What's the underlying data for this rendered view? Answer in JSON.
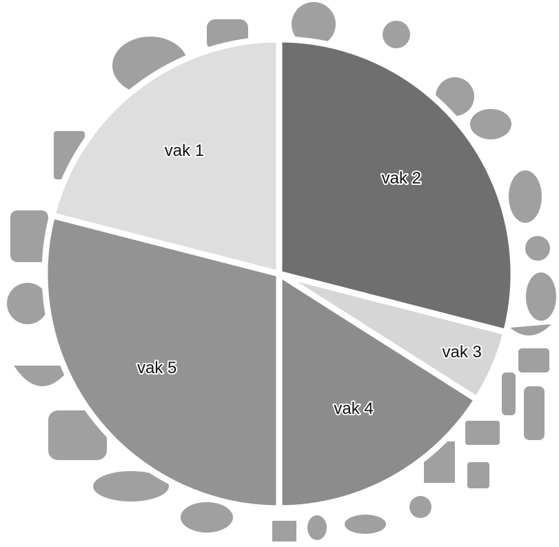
{
  "chart_data": {
    "type": "pie",
    "categories": [
      "vak 1",
      "vak 2",
      "vak 3",
      "vak 4",
      "vak 5"
    ],
    "values": [
      21,
      29,
      5,
      16,
      29
    ],
    "colors": [
      "#dedede",
      "#6f6f6f",
      "#d6d6d6",
      "#8c8c8c",
      "#939393"
    ]
  }
}
